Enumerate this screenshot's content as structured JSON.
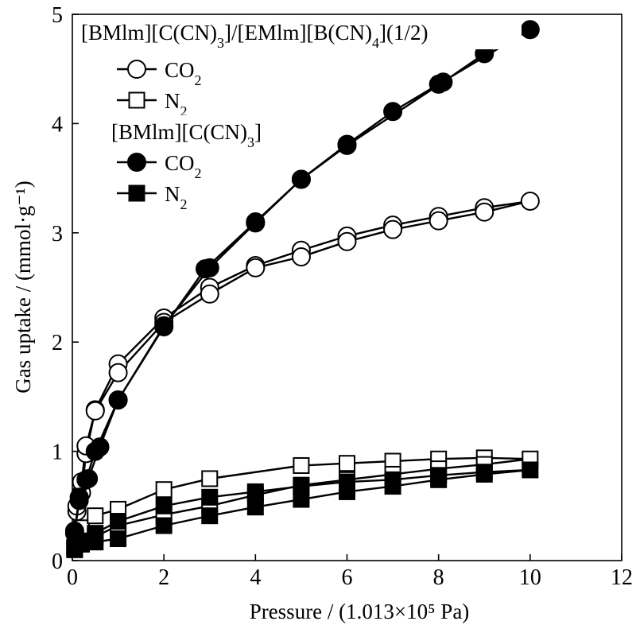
{
  "chart_data": {
    "type": "line",
    "title": "",
    "xlabel": "Pressure / (1.013×10⁵ Pa)",
    "ylabel": "Gas uptake / (mmol·g⁻¹)",
    "xlim": [
      0,
      12
    ],
    "ylim": [
      0,
      5
    ],
    "x_ticks": [
      0,
      2,
      4,
      6,
      8,
      10,
      12
    ],
    "y_ticks": [
      0,
      1,
      2,
      3,
      4,
      5
    ],
    "grid": false,
    "legend_position": "top-left",
    "legend_groups": [
      {
        "heading": "[BMlm][C(CN)3]/[EMlm][B(CN)4](1/2)",
        "entries": [
          "CO2",
          "N2"
        ],
        "filled": false
      },
      {
        "heading": "[BMlm][C(CN)3]",
        "entries": [
          "CO2",
          "N2"
        ],
        "filled": true
      }
    ],
    "series": [
      {
        "name": "[BMlm][C(CN)3]/[EMlm][B(CN)4](1/2) CO2",
        "marker": "circle",
        "filled": false,
        "x": [
          0.1,
          0.2,
          0.3,
          0.5,
          1.0,
          2.0,
          3.0,
          4.0,
          5.0,
          6.0,
          7.0,
          8.0,
          9.0,
          10.0,
          9.0,
          8.0,
          7.0,
          6.0,
          5.0,
          4.0,
          3.0,
          2.0,
          1.0,
          0.5,
          0.3,
          0.2,
          0.1
        ],
        "y": [
          0.45,
          0.62,
          0.98,
          1.38,
          1.8,
          2.22,
          2.5,
          2.7,
          2.84,
          2.97,
          3.07,
          3.15,
          3.23,
          3.29,
          3.19,
          3.11,
          3.03,
          2.92,
          2.78,
          2.68,
          2.44,
          2.18,
          1.72,
          1.37,
          1.05,
          0.72,
          0.5
        ]
      },
      {
        "name": "[BMlm][C(CN)3]/[EMlm][B(CN)4](1/2) N2",
        "marker": "square",
        "filled": false,
        "x": [
          0.05,
          0.2,
          0.5,
          1.0,
          2.0,
          3.0,
          5.0,
          6.0,
          7.0,
          8.0,
          9.0,
          10.0,
          9.0,
          8.0,
          7.0,
          6.0,
          5.0,
          4.0,
          3.0,
          2.0,
          1.0,
          0.5,
          0.2,
          0.05
        ],
        "y": [
          0.12,
          0.3,
          0.41,
          0.47,
          0.65,
          0.75,
          0.87,
          0.89,
          0.91,
          0.93,
          0.94,
          0.93,
          0.88,
          0.84,
          0.79,
          0.74,
          0.69,
          0.6,
          0.5,
          0.42,
          0.32,
          0.22,
          0.17,
          0.1
        ]
      },
      {
        "name": "[BMlm][C(CN)3] CO2",
        "marker": "circle",
        "filled": true,
        "x": [
          0.05,
          0.15,
          0.35,
          0.6,
          1.0,
          2.0,
          3.0,
          4.0,
          5.0,
          6.0,
          7.0,
          8.0,
          10.0,
          9.0,
          8.1,
          6.0,
          5.0,
          4.0,
          2.9,
          2.0,
          1.0,
          0.5,
          0.3,
          0.15,
          0.05
        ],
        "y": [
          0.25,
          0.55,
          0.75,
          1.04,
          1.47,
          2.15,
          2.68,
          3.09,
          3.49,
          3.81,
          4.11,
          4.36,
          4.86,
          4.64,
          4.38,
          3.8,
          3.49,
          3.1,
          2.67,
          2.14,
          1.47,
          1.0,
          0.74,
          0.58,
          0.27
        ]
      },
      {
        "name": "[BMlm][C(CN)3] N2",
        "marker": "square",
        "filled": true,
        "x": [
          0.05,
          0.2,
          0.5,
          1.0,
          2.0,
          3.0,
          4.0,
          5.0,
          6.0,
          7.0,
          8.0,
          9.0,
          10.0,
          9.0,
          8.0,
          7.0,
          6.0,
          5.0,
          4.0,
          3.0,
          2.0,
          1.0,
          0.5,
          0.2,
          0.05
        ],
        "y": [
          0.1,
          0.15,
          0.17,
          0.2,
          0.32,
          0.41,
          0.49,
          0.56,
          0.63,
          0.68,
          0.74,
          0.79,
          0.83,
          0.81,
          0.78,
          0.74,
          0.72,
          0.68,
          0.63,
          0.58,
          0.5,
          0.36,
          0.25,
          0.18,
          0.12
        ]
      }
    ]
  }
}
